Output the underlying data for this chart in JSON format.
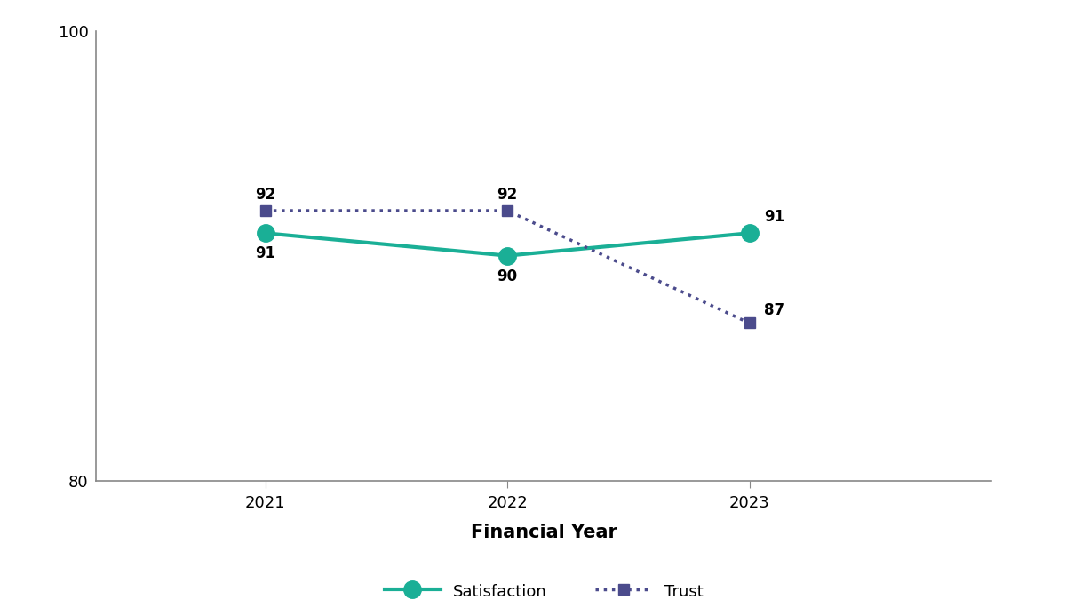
{
  "years": [
    2021,
    2022,
    2023
  ],
  "satisfaction": [
    91,
    90,
    91
  ],
  "trust": [
    92,
    92,
    87
  ],
  "satisfaction_color": "#1aaf96",
  "trust_color": "#4b4b8c",
  "satisfaction_label": "Satisfaction",
  "trust_label": "Trust",
  "xlabel": "Financial Year",
  "ylim": [
    80,
    100
  ],
  "yticks": [
    80,
    100
  ],
  "background_color": "#ffffff",
  "xlabel_fontsize": 15,
  "annotation_fontsize": 12,
  "legend_fontsize": 13,
  "tick_fontsize": 13,
  "spine_color": "#888888"
}
